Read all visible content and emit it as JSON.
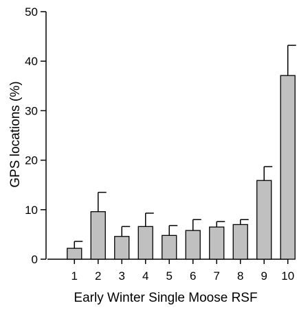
{
  "chart_data": {
    "type": "bar",
    "title": "",
    "xlabel": "Early Winter Single Moose RSF",
    "ylabel": "GPS locations (%)",
    "categories": [
      "1",
      "2",
      "3",
      "4",
      "5",
      "6",
      "7",
      "8",
      "9",
      "10"
    ],
    "values": [
      2.2,
      9.6,
      4.6,
      6.6,
      4.8,
      5.8,
      6.5,
      7.0,
      15.9,
      37.1
    ],
    "error_upper": [
      3.6,
      13.5,
      6.6,
      9.3,
      6.8,
      8.0,
      7.6,
      8.0,
      18.7,
      43.2
    ],
    "ylim": [
      0,
      50
    ],
    "yticks": [
      "0",
      "10",
      "20",
      "30",
      "40",
      "50"
    ],
    "grid": false,
    "legend": "none",
    "colors": {
      "bar_fill": "#c0c0c0",
      "bar_stroke": "#000000",
      "axis": "#000000"
    }
  }
}
